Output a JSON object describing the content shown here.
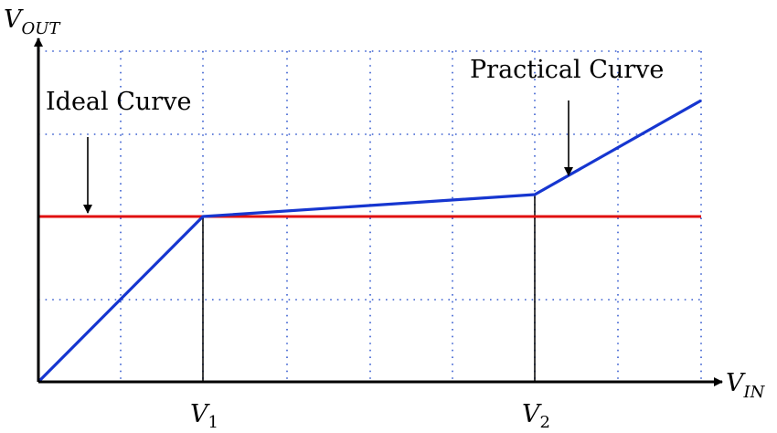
{
  "labels": {
    "y_axis_main": "V",
    "y_axis_sub": "OUT",
    "x_axis_main": "V",
    "x_axis_sub": "IN",
    "v1_main": "V",
    "v1_sub": "1",
    "v2_main": "V",
    "v2_sub": "2",
    "ideal_curve": "Ideal Curve",
    "practical_curve": "Practical Curve"
  },
  "colors": {
    "ideal_curve": "#e01010",
    "practical_curve": "#1636d0",
    "grid": "#3a5fd0",
    "axes": "#000000"
  }
}
